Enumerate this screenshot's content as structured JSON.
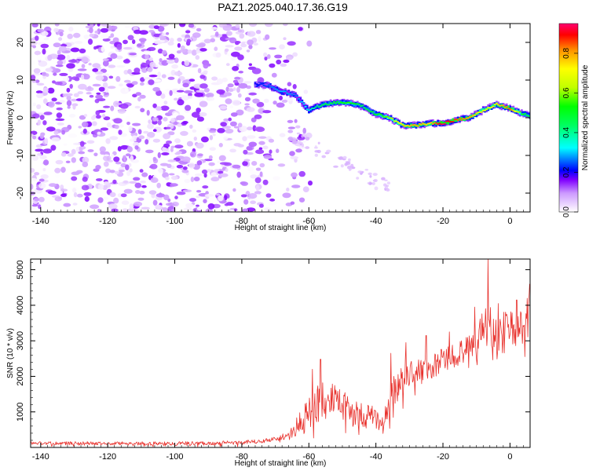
{
  "chart_data": {
    "title": "PAZ1.2025.040.17.36.G19",
    "panels": [
      {
        "type": "heatmap",
        "xlabel": "Height of straight line (km)",
        "ylabel": "Frequency (Hz)",
        "xlim": [
          -143,
          6
        ],
        "ylim": [
          -25,
          25
        ],
        "xticks": [
          -140,
          -120,
          -100,
          -80,
          -60,
          -40,
          -20,
          0
        ],
        "yticks": [
          -20,
          -10,
          0,
          10,
          20
        ],
        "colorbar": {
          "label": "Normalized spectral amplitude",
          "range": [
            0,
            0.95
          ],
          "ticks": [
            0.0,
            0.2,
            0.4,
            0.6,
            0.8
          ]
        },
        "signal_track": {
          "x": [
            -76,
            -72,
            -68,
            -64,
            -60,
            -56,
            -52,
            -48,
            -44,
            -40,
            -36,
            -32,
            -28,
            -24,
            -20,
            -16,
            -12,
            -8,
            -4,
            0,
            4,
            6
          ],
          "freq": [
            9,
            8.5,
            7,
            6,
            2,
            3.5,
            4,
            4,
            3,
            1,
            0,
            -2,
            -2,
            -1.5,
            -1.5,
            -0.5,
            0,
            2,
            3.5,
            2.5,
            1,
            0.5
          ],
          "amplitude": [
            0.2,
            0.25,
            0.3,
            0.25,
            0.35,
            0.45,
            0.5,
            0.55,
            0.45,
            0.5,
            0.6,
            0.75,
            0.8,
            0.75,
            0.95,
            0.85,
            0.8,
            0.7,
            0.75,
            0.85,
            0.5,
            0.45
          ]
        },
        "noise_region_x": [
          -143,
          -65
        ],
        "noise_amplitude_range": [
          0.0,
          0.15
        ]
      },
      {
        "type": "line",
        "xlabel": "Height of straight line (km)",
        "ylabel": "SNR (10 * v/v)",
        "xlim": [
          -143,
          6
        ],
        "ylim": [
          0,
          5300
        ],
        "xticks": [
          -140,
          -120,
          -100,
          -80,
          -60,
          -40,
          -20,
          0
        ],
        "yticks": [
          1000,
          2000,
          3000,
          4000,
          5000
        ],
        "series": [
          {
            "name": "SNR",
            "color": "#e8312c",
            "x": [
              -143,
              -120,
              -100,
              -80,
              -72,
              -66,
              -62,
              -59,
              -56,
              -53,
              -50,
              -47,
              -44,
              -41,
              -38,
              -35,
              -32,
              -29,
              -26,
              -23,
              -20,
              -17,
              -14,
              -11,
              -8,
              -6,
              -4,
              -2,
              0,
              2,
              4,
              6
            ],
            "base": [
              120,
              115,
              110,
              130,
              200,
              350,
              700,
              1100,
              1350,
              1300,
              1150,
              1050,
              900,
              850,
              650,
              1500,
              1950,
              2150,
              2200,
              2250,
              2450,
              2600,
              2700,
              2800,
              3500,
              3400,
              3200,
              3350,
              3450,
              3200,
              3400,
              3800
            ],
            "amp": [
              50,
              50,
              55,
              60,
              60,
              100,
              400,
              550,
              550,
              500,
              450,
              400,
              350,
              350,
              300,
              500,
              500,
              400,
              350,
              350,
              350,
              350,
              350,
              400,
              500,
              700,
              550,
              500,
              500,
              500,
              550,
              600
            ],
            "peaks": [
              {
                "x": -59,
                "y": 2200
              },
              {
                "x": -56.5,
                "y": 2480
              },
              {
                "x": -35.5,
                "y": 2650
              },
              {
                "x": -31,
                "y": 2950
              },
              {
                "x": -25,
                "y": 3150
              },
              {
                "x": -18,
                "y": 3250
              },
              {
                "x": -10.5,
                "y": 3950
              },
              {
                "x": -6.5,
                "y": 5300
              },
              {
                "x": -3.5,
                "y": 4050
              },
              {
                "x": 2,
                "y": 4150
              },
              {
                "x": 5.8,
                "y": 4600
              }
            ]
          }
        ]
      }
    ]
  }
}
